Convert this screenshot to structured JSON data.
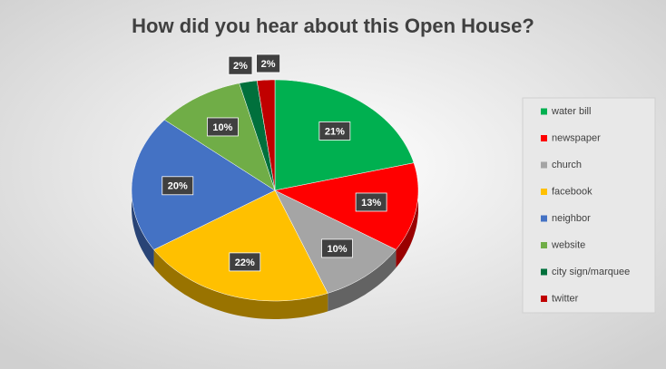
{
  "chart_data": {
    "type": "pie",
    "title": "How did you hear about this Open House?",
    "categories": [
      "water bill",
      "newspaper",
      "church",
      "facebook",
      "neighbor",
      "website",
      "city sign/marquee",
      "twitter"
    ],
    "values": [
      21,
      13,
      10,
      22,
      20,
      10,
      2,
      2
    ],
    "value_labels": [
      "21%",
      "13%",
      "10%",
      "22%",
      "20%",
      "10%",
      "2%",
      "2%"
    ],
    "colors": [
      "#00b050",
      "#ff0000",
      "#a5a5a5",
      "#ffc000",
      "#4472c4",
      "#70ad47",
      "#00703c",
      "#c00000"
    ],
    "legend": "right"
  }
}
